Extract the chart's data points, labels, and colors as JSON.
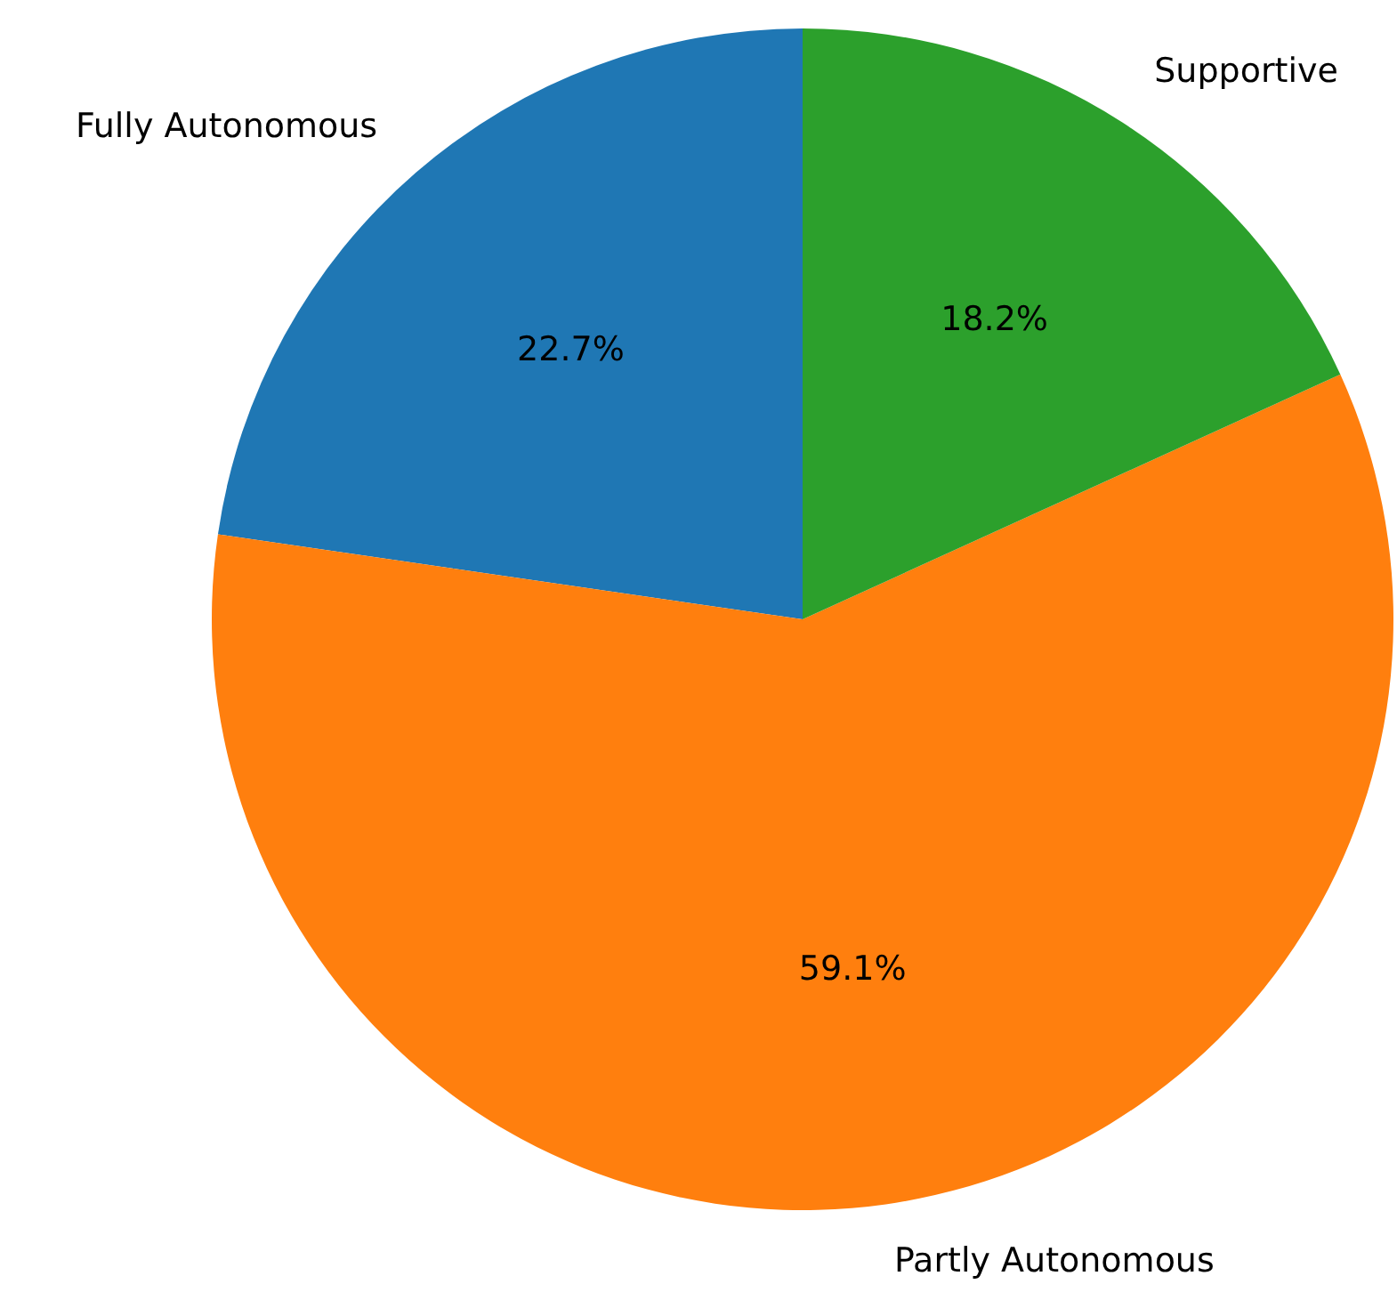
{
  "chart_data": {
    "type": "pie",
    "categories": [
      "Fully Autonomous",
      "Partly Autonomous",
      "Supportive"
    ],
    "values": [
      22.7,
      59.1,
      18.2
    ],
    "colors": [
      "#1f77b4",
      "#ff7f0e",
      "#2ca02c"
    ],
    "value_labels": [
      "22.7%",
      "59.1%",
      "18.2%"
    ]
  }
}
